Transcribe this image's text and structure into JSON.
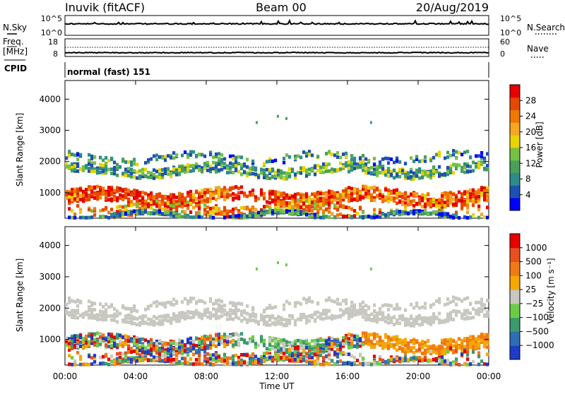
{
  "header": {
    "station": "Inuvik (fitACF)",
    "beam": "Beam 00",
    "date": "20/Aug/2019"
  },
  "noise_panel": {
    "left_label": "N.Sky",
    "left_ticks": [
      "10^5",
      "10^0"
    ],
    "right_ticks": [
      "10^5",
      "10^0"
    ],
    "right_label": "N.Search",
    "right_legend_line": "dotted"
  },
  "freq_panel": {
    "left_label_top": "Freq.",
    "left_label_unit": "[MHz]",
    "left_ticks": [
      "18",
      "8"
    ],
    "right_ticks": [
      "60",
      "0"
    ],
    "right_label": "Nave",
    "right_legend_line": "dotted"
  },
  "cpid": {
    "label": "CPID",
    "value": "normal (fast) 151"
  },
  "chart_data": [
    {
      "type": "heatmap",
      "name": "power",
      "ylabel": "Slant Range [km]",
      "ylim": [
        180,
        4600
      ],
      "yticks": [
        "1000",
        "2000",
        "3000",
        "4000"
      ],
      "colorbar_label": "Power [dB]",
      "colorbar_ticks": [
        "4",
        "8",
        "12",
        "16",
        "20",
        "24",
        "28"
      ],
      "colorbar_range": [
        0,
        30
      ],
      "colors": [
        "#0000ff",
        "#1e50b4",
        "#2e8b8b",
        "#4aa05a",
        "#76c043",
        "#e8d400",
        "#f5a623",
        "#f07800",
        "#e64800",
        "#e60000"
      ]
    },
    {
      "type": "heatmap",
      "name": "velocity",
      "xlabel": "Time UT",
      "ylabel": "Slant Range [km]",
      "ylim": [
        180,
        4600
      ],
      "yticks": [
        "1000",
        "2000",
        "3000",
        "4000"
      ],
      "xticks": [
        "00:00",
        "04:00",
        "08:00",
        "12:00",
        "16:00",
        "20:00",
        "00:00"
      ],
      "colorbar_label": "Velocity [m s⁻¹]",
      "colorbar_ticks": [
        "1000",
        "500",
        "100",
        "25",
        "−25",
        "−100",
        "−500",
        "−1000"
      ],
      "colors": [
        "#1e3cc8",
        "#2e6eb4",
        "#3c9a6e",
        "#6ccc4a",
        "#c8c8c0",
        "#f5a800",
        "#f07a14",
        "#e85020",
        "#e60000"
      ]
    }
  ]
}
